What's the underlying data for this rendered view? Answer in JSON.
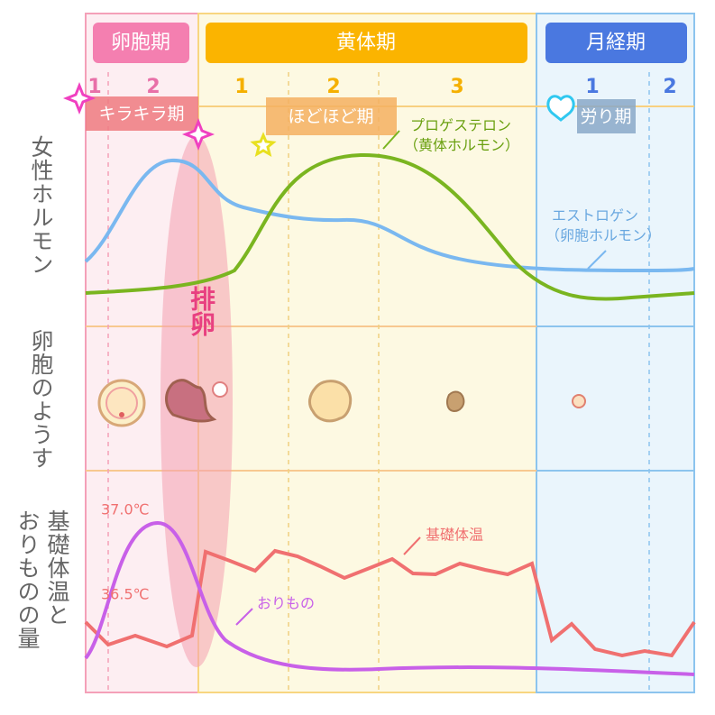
{
  "phases": [
    {
      "label": "卵胞期",
      "weeks": [
        "1",
        "2"
      ],
      "stage": "キラキラ期"
    },
    {
      "label": "黄体期",
      "weeks": [
        "1",
        "2",
        "3"
      ],
      "stage": "ほどほど期"
    },
    {
      "label": "月経期",
      "weeks": [
        "1",
        "2"
      ],
      "stage": "労り期"
    }
  ],
  "rows": [
    {
      "lines": [
        "女性ホルモン"
      ]
    },
    {
      "lines": [
        "卵胞のようす"
      ]
    },
    {
      "lines": [
        "基礎体温と",
        "おりものの量"
      ]
    }
  ],
  "ovulation": "排卵",
  "curves": {
    "progesterone": {
      "name": "プロゲステロン",
      "sub": "（黄体ホルモン）"
    },
    "estrogen": {
      "name": "エストロゲン",
      "sub": "（卵胞ホルモン）"
    },
    "basal_temperature": "基礎体温",
    "discharge": "おりもの"
  },
  "temp_labels": [
    "37.0℃",
    "36.5℃"
  ]
}
